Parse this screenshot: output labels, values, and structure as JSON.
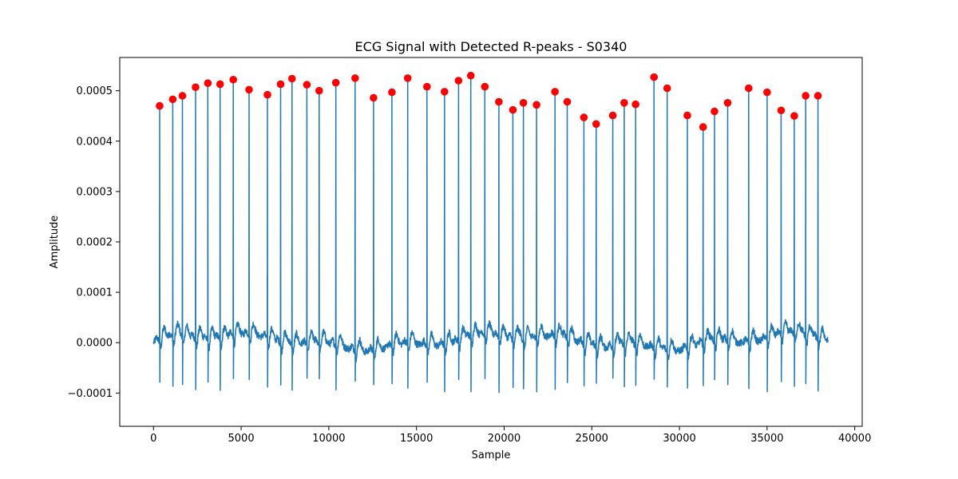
{
  "chart_data": {
    "type": "line",
    "title": "ECG Signal with Detected R-peaks - S0340",
    "xlabel": "Sample",
    "ylabel": "Amplitude",
    "xlim": [
      -1925,
      40425
    ],
    "ylim": [
      -0.000166,
      0.000566
    ],
    "xticks": [
      0,
      5000,
      10000,
      15000,
      20000,
      25000,
      30000,
      35000,
      40000
    ],
    "xtick_labels": [
      "0",
      "5000",
      "10000",
      "15000",
      "20000",
      "25000",
      "30000",
      "35000",
      "40000"
    ],
    "yticks": [
      -0.0001,
      0.0,
      0.0001,
      0.0002,
      0.0003,
      0.0004,
      0.0005
    ],
    "ytick_labels": [
      "−0.0001",
      "0.0000",
      "0.0001",
      "0.0002",
      "0.0003",
      "0.0004",
      "0.0005"
    ],
    "grid": false,
    "colors": {
      "signal": "#1f77b4",
      "peaks": "#ff0000"
    },
    "signal_samples": 38500,
    "series": [
      {
        "role": "signal",
        "description": "ECG trace, baseline approx 0 with spikes at each R-peak"
      },
      {
        "role": "r-peaks",
        "x": [
          350,
          1100,
          1650,
          2400,
          3100,
          3800,
          4550,
          5450,
          6500,
          7250,
          7900,
          8750,
          9450,
          10400,
          11500,
          12550,
          13600,
          14500,
          15600,
          16600,
          17400,
          18100,
          18900,
          19700,
          20500,
          21100,
          21850,
          22900,
          23600,
          24550,
          25250,
          26200,
          26850,
          27500,
          28550,
          29300,
          30450,
          31350,
          32000,
          32750,
          33950,
          35000,
          35800,
          36550,
          37200,
          37900
        ],
        "y": [
          0.00047,
          0.000483,
          0.00049,
          0.000507,
          0.000515,
          0.000513,
          0.000522,
          0.000502,
          0.000492,
          0.000513,
          0.000524,
          0.000512,
          0.0005,
          0.000516,
          0.000525,
          0.000486,
          0.000497,
          0.000525,
          0.000508,
          0.000498,
          0.00052,
          0.00053,
          0.000508,
          0.000478,
          0.000462,
          0.000476,
          0.000472,
          0.000498,
          0.000478,
          0.000447,
          0.000434,
          0.000451,
          0.000476,
          0.000473,
          0.000527,
          0.000505,
          0.000451,
          0.000428,
          0.000459,
          0.000476,
          0.000505,
          0.000497,
          0.000461,
          0.00045,
          0.00049,
          0.00049
        ]
      }
    ]
  }
}
